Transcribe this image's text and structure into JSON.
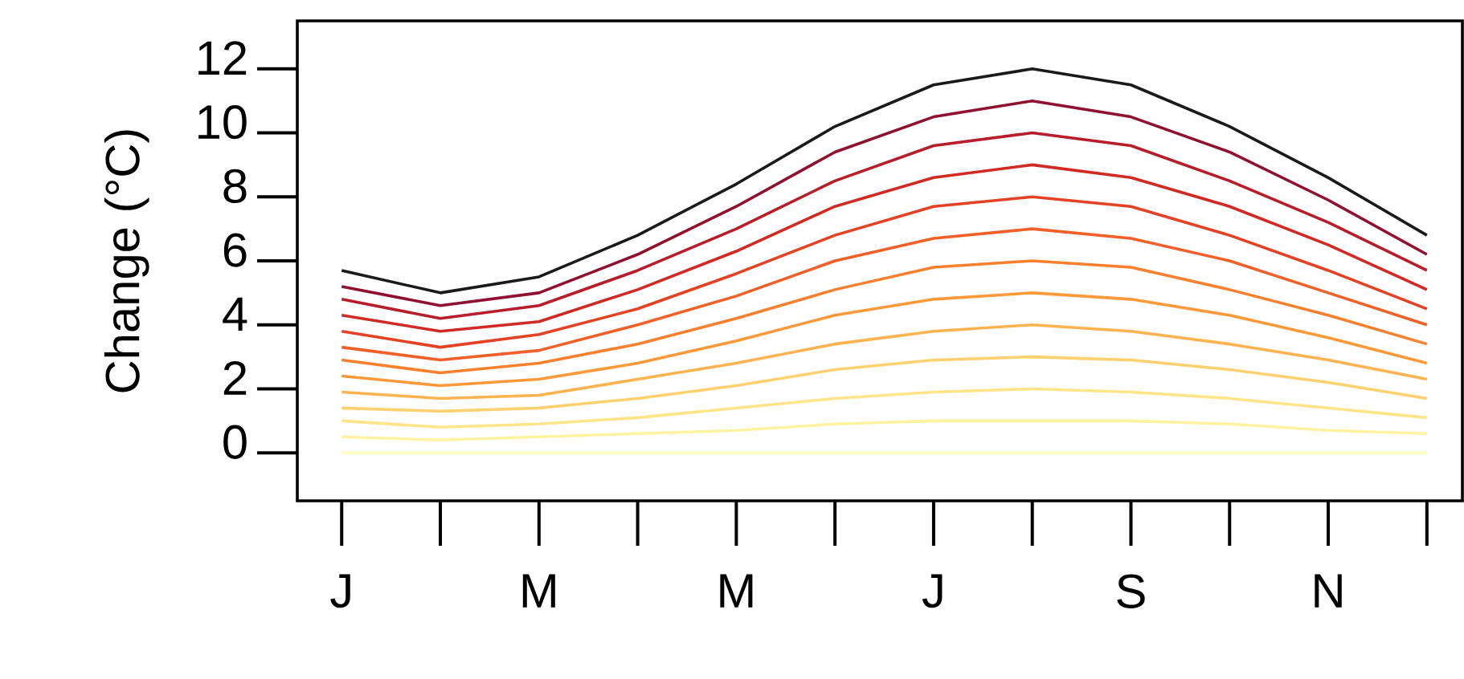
{
  "chart_data": {
    "type": "line",
    "ylabel": "Change (°C)",
    "categories": [
      "J",
      null,
      "M",
      null,
      "M",
      null,
      "J",
      null,
      "S",
      null,
      "N",
      null
    ],
    "ylim": [
      -1.5,
      13.5
    ],
    "yticks": [
      0,
      2,
      4,
      6,
      8,
      10,
      12
    ],
    "grid": false,
    "marker": "none",
    "line_style": "solid",
    "series": [
      {
        "color": "#fffcc0",
        "values": [
          0,
          0,
          0,
          0,
          0,
          0,
          0,
          0,
          0,
          0,
          0,
          0
        ]
      },
      {
        "color": "#fff2a0",
        "values": [
          0.5,
          0.4,
          0.5,
          0.6,
          0.7,
          0.9,
          1.0,
          1.0,
          1.0,
          0.9,
          0.7,
          0.6
        ]
      },
      {
        "color": "#fee58a",
        "values": [
          1.0,
          0.8,
          0.9,
          1.1,
          1.4,
          1.7,
          1.9,
          2.0,
          1.9,
          1.7,
          1.4,
          1.1
        ]
      },
      {
        "color": "#fed170",
        "values": [
          1.4,
          1.3,
          1.4,
          1.7,
          2.1,
          2.6,
          2.9,
          3.0,
          2.9,
          2.6,
          2.2,
          1.7
        ]
      },
      {
        "color": "#fdb350",
        "values": [
          1.9,
          1.7,
          1.8,
          2.3,
          2.8,
          3.4,
          3.8,
          4.0,
          3.8,
          3.4,
          2.9,
          2.3
        ]
      },
      {
        "color": "#fc9a3a",
        "values": [
          2.4,
          2.1,
          2.3,
          2.8,
          3.5,
          4.3,
          4.8,
          5.0,
          4.8,
          4.3,
          3.6,
          2.8
        ]
      },
      {
        "color": "#f8802e",
        "values": [
          2.9,
          2.5,
          2.8,
          3.4,
          4.2,
          5.1,
          5.8,
          6.0,
          5.8,
          5.1,
          4.3,
          3.4
        ]
      },
      {
        "color": "#f06028",
        "values": [
          3.3,
          2.9,
          3.2,
          4.0,
          4.9,
          6.0,
          6.7,
          7.0,
          6.7,
          6.0,
          5.0,
          4.0
        ]
      },
      {
        "color": "#e34224",
        "values": [
          3.8,
          3.3,
          3.7,
          4.5,
          5.6,
          6.8,
          7.7,
          8.0,
          7.7,
          6.8,
          5.7,
          4.5
        ]
      },
      {
        "color": "#d12a24",
        "values": [
          4.3,
          3.8,
          4.1,
          5.1,
          6.3,
          7.7,
          8.6,
          9.0,
          8.6,
          7.7,
          6.5,
          5.1
        ]
      },
      {
        "color": "#b81d2c",
        "values": [
          4.8,
          4.2,
          4.6,
          5.7,
          7.0,
          8.5,
          9.6,
          10.0,
          9.6,
          8.5,
          7.2,
          5.7
        ]
      },
      {
        "color": "#8f1030",
        "values": [
          5.2,
          4.6,
          5.0,
          6.2,
          7.7,
          9.4,
          10.5,
          11.0,
          10.5,
          9.4,
          7.9,
          6.2
        ]
      },
      {
        "color": "#1a1a1a",
        "values": [
          5.7,
          5.0,
          5.5,
          6.8,
          8.4,
          10.2,
          11.5,
          12.0,
          11.5,
          10.2,
          8.6,
          6.8
        ]
      }
    ]
  }
}
